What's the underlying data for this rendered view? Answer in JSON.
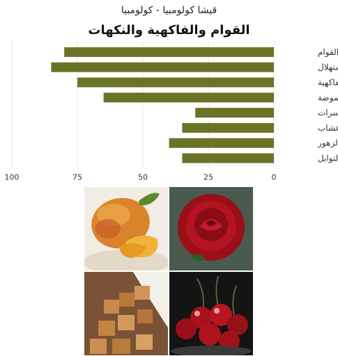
{
  "subtitle": "قيشا كولومبيا - كولومبيا",
  "title": "القوام والفاكهية والنكهات",
  "bar_color": "#6b7328",
  "chart_data": {
    "type": "bar",
    "orientation": "horizontal",
    "x_direction": "reversed",
    "categories": [
      "القوام",
      "الاستهلال",
      "الفاكهية",
      "الحموضة",
      "المكسرات",
      "الأعشاب",
      "الزهور",
      "التوابل"
    ],
    "values": [
      80,
      85,
      75,
      65,
      30,
      35,
      40,
      35
    ],
    "xlim": [
      0,
      100
    ],
    "xticks": [
      "0",
      "25",
      "50",
      "75",
      "100"
    ],
    "grid": true
  },
  "photos": [
    {
      "icon": "mango-photo-icon"
    },
    {
      "icon": "rose-photo-icon"
    },
    {
      "icon": "brown-sugar-photo-icon"
    },
    {
      "icon": "cherries-photo-icon"
    }
  ]
}
